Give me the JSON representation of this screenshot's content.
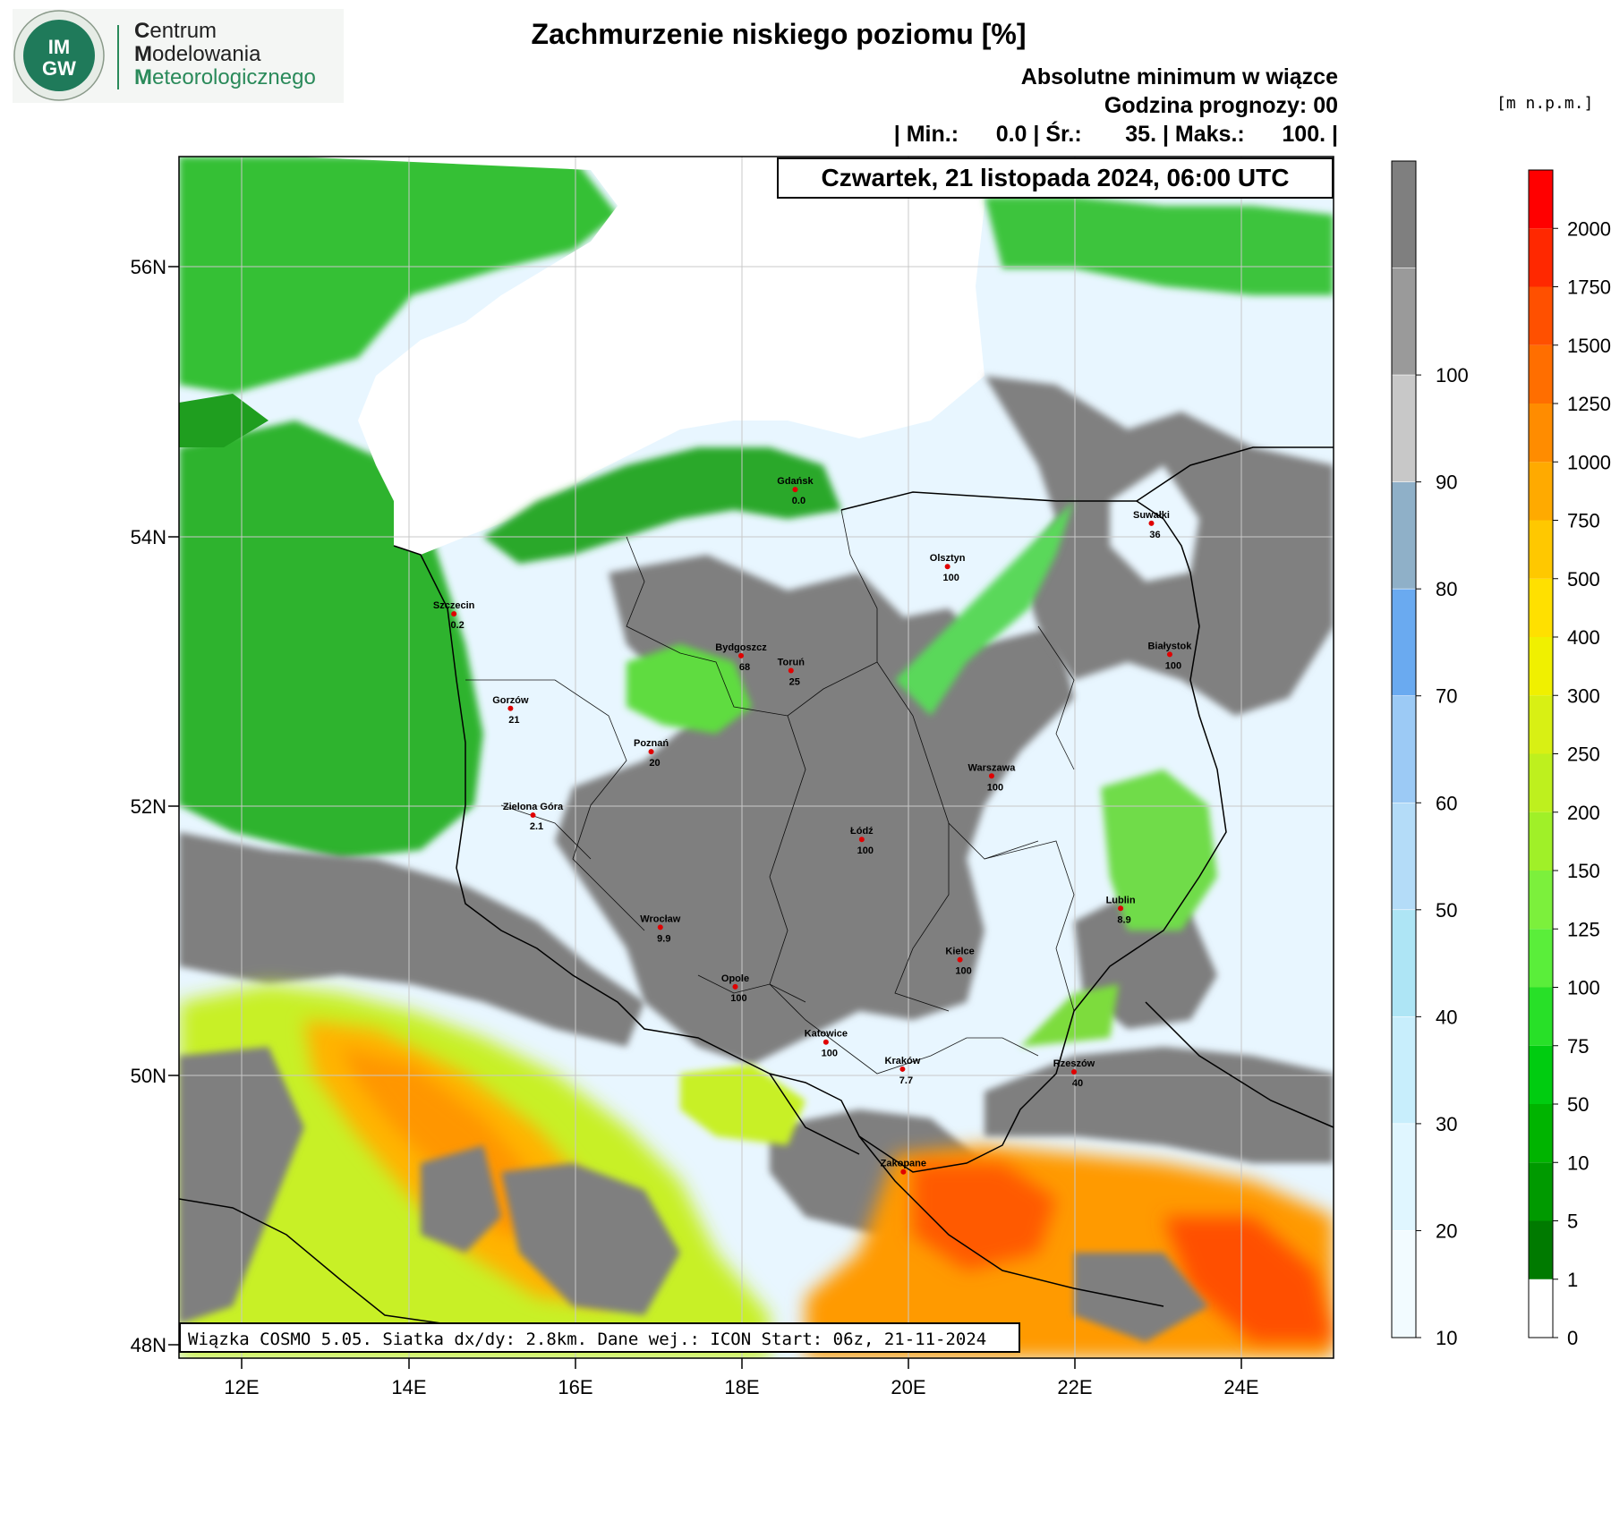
{
  "logo": {
    "badge_top": "IM",
    "badge_bottom": "GW",
    "line1_initial": "C",
    "line1_rest": "entrum",
    "line2_initial": "M",
    "line2_rest": "odelowania",
    "line3_initial": "M",
    "line3_rest": "eteorologicznego"
  },
  "title": "Zachmurzenie niskiego poziomu [%]",
  "subtitle1": "Absolutne minimum w wiązce",
  "subtitle2": "Godzina prognozy: 00",
  "stats": "| Min.:      0.0 | Śr.:       35. | Maks.:      100. |",
  "date": "Czwartek, 21 listopada 2024, 06:00 UTC",
  "footer": "Wiązka COSMO 5.05. Siatka dx/dy: 2.8km. Dane wej.: ICON Start: 06z, 21-11-2024",
  "lat_labels": [
    "56N",
    "54N",
    "52N",
    "50N",
    "48N"
  ],
  "lon_labels": [
    "12E",
    "14E",
    "16E",
    "18E",
    "20E",
    "22E",
    "24E"
  ],
  "cities": [
    {
      "name": "Gdańsk",
      "value": "0.0",
      "lon": 18.65,
      "lat": 54.35
    },
    {
      "name": "Suwałki",
      "value": "36",
      "lon": 22.93,
      "lat": 54.1
    },
    {
      "name": "Olsztyn",
      "value": "100",
      "lon": 20.48,
      "lat": 53.78
    },
    {
      "name": "Szczecin",
      "value": "0.2",
      "lon": 14.55,
      "lat": 53.43
    },
    {
      "name": "Bydgoszcz",
      "value": "68",
      "lon": 18.0,
      "lat": 53.12
    },
    {
      "name": "Toruń",
      "value": "25",
      "lon": 18.6,
      "lat": 53.01
    },
    {
      "name": "Białystok",
      "value": "100",
      "lon": 23.15,
      "lat": 53.13
    },
    {
      "name": "Gorzów",
      "value": "21",
      "lon": 15.23,
      "lat": 52.73
    },
    {
      "name": "Poznań",
      "value": "20",
      "lon": 16.92,
      "lat": 52.41
    },
    {
      "name": "Warszawa",
      "value": "100",
      "lon": 21.01,
      "lat": 52.23
    },
    {
      "name": "Zielona Góra",
      "value": "2.1",
      "lon": 15.5,
      "lat": 51.94
    },
    {
      "name": "Łódź",
      "value": "100",
      "lon": 19.45,
      "lat": 51.76
    },
    {
      "name": "Lublin",
      "value": "8.9",
      "lon": 22.56,
      "lat": 51.25
    },
    {
      "name": "Wrocław",
      "value": "9.9",
      "lon": 17.03,
      "lat": 51.11
    },
    {
      "name": "Kielce",
      "value": "100",
      "lon": 20.63,
      "lat": 50.87
    },
    {
      "name": "Opole",
      "value": "100",
      "lon": 17.93,
      "lat": 50.67
    },
    {
      "name": "Katowice",
      "value": "100",
      "lon": 19.02,
      "lat": 50.26
    },
    {
      "name": "Kraków",
      "value": "7.7",
      "lon": 19.94,
      "lat": 50.06
    },
    {
      "name": "Rzeszów",
      "value": "40",
      "lon": 22.0,
      "lat": 50.04
    },
    {
      "name": "Zakopane",
      "value": "",
      "lon": 19.95,
      "lat": 49.3
    }
  ],
  "cloud_legend": {
    "labels": [
      "10",
      "20",
      "30",
      "40",
      "50",
      "60",
      "70",
      "80",
      "90",
      "100"
    ],
    "colors": [
      "#f2fbff",
      "#e0f6ff",
      "#c8eefc",
      "#aee5f5",
      "#b4dcf8",
      "#9ccaf5",
      "#6aaaf0",
      "#8fb0c8",
      "#c8c8c8",
      "#9a9a9a",
      "#7f7f7f"
    ]
  },
  "terrain_legend": {
    "unit": "[m n.p.m.]",
    "labels": [
      "0",
      "1",
      "5",
      "10",
      "50",
      "75",
      "100",
      "125",
      "150",
      "200",
      "250",
      "300",
      "400",
      "500",
      "750",
      "1000",
      "1250",
      "1500",
      "1750",
      "2000"
    ],
    "colors": [
      "#ffffff",
      "#007a00",
      "#009a00",
      "#00b400",
      "#00cc10",
      "#28e028",
      "#5aee3a",
      "#7cf03c",
      "#a0f028",
      "#bef01e",
      "#d8f014",
      "#f0f000",
      "#ffe000",
      "#ffc800",
      "#ffaa00",
      "#ff8c00",
      "#ff6e00",
      "#ff5000",
      "#ff2800",
      "#ff0000"
    ]
  }
}
